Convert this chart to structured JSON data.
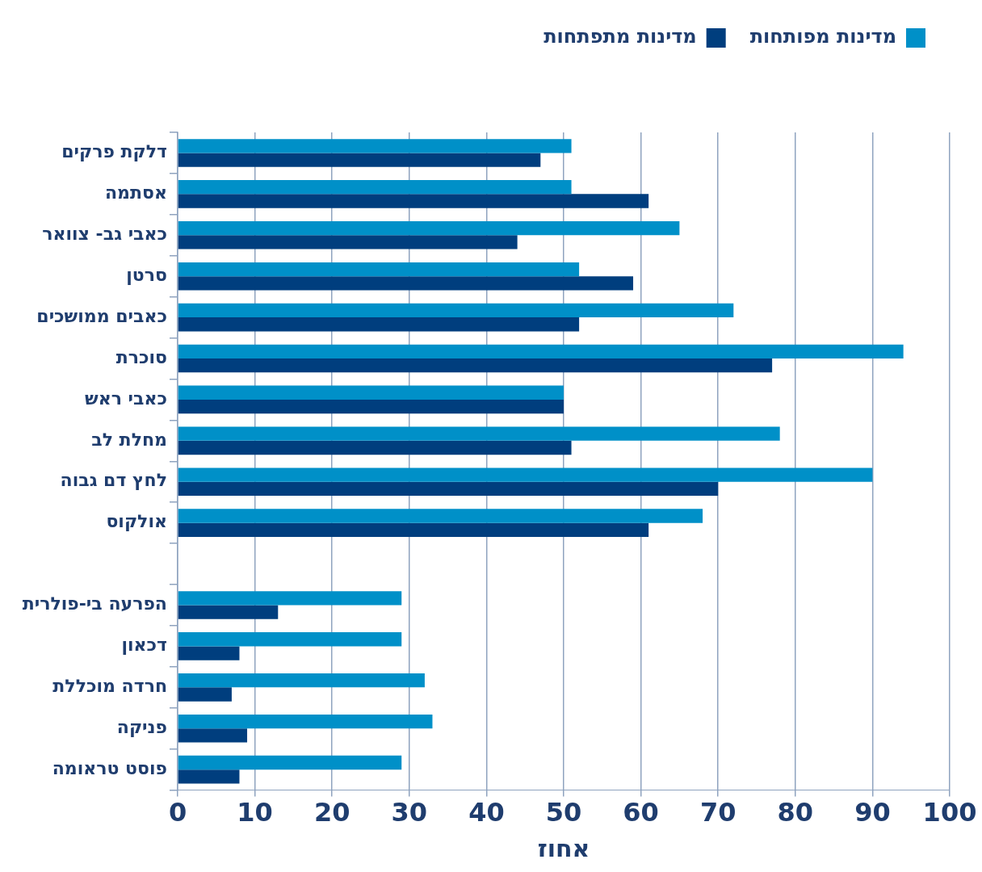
{
  "chart_data": {
    "type": "bar",
    "orientation": "horizontal",
    "xlabel": "אחוז",
    "categories": [
      "דלקת פרקים",
      "אסתמה",
      "כאבי גב- צוואר",
      "סרטן",
      "כאבים ממושכים",
      "סוכרת",
      "כאבי ראש",
      "מחלת לב",
      "לחץ דם גבוה",
      "אולקוס",
      null,
      "הפרעה בי-פולרית",
      "דכאון",
      "חרדה מוכללת",
      "פניקה",
      "פוסט טראומה"
    ],
    "series": [
      {
        "name": "מדינות מפותחות",
        "color": "#0090c8",
        "values": [
          51,
          51,
          65,
          52,
          72,
          94,
          50,
          78,
          90,
          68,
          null,
          29,
          29,
          32,
          33,
          29
        ]
      },
      {
        "name": "מדינות מתפתחות",
        "color": "#003e7e",
        "values": [
          47,
          61,
          44,
          59,
          52,
          77,
          50,
          51,
          70,
          61,
          null,
          13,
          8,
          7,
          9,
          8
        ]
      }
    ],
    "xlim": [
      0,
      100
    ],
    "xticks": [
      0,
      10,
      20,
      30,
      40,
      50,
      60,
      70,
      80,
      90,
      100
    ],
    "grid": "x",
    "legend": "top right"
  }
}
